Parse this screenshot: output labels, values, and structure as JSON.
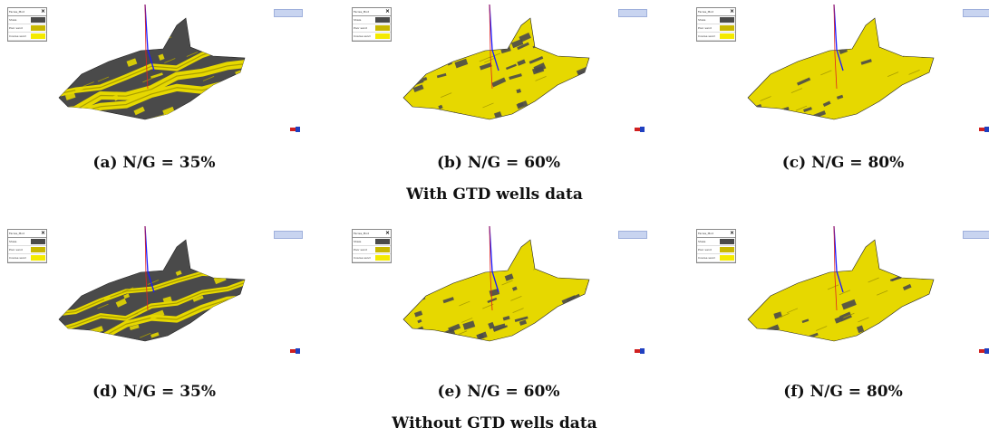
{
  "legend": {
    "title": "Facies_Mod",
    "rows": [
      {
        "label": "Shale",
        "color": "#4a4a4a"
      },
      {
        "label": "Poor sand",
        "color": "#c9b800"
      },
      {
        "label": "Coarse sand",
        "color": "#f4ea00"
      }
    ]
  },
  "panels": [
    {
      "caption": "(a) N/G = 35%"
    },
    {
      "caption": "(b) N/G = 60%"
    },
    {
      "caption": "(c) N/G = 80%"
    },
    {
      "caption": "(d) N/G = 35%"
    },
    {
      "caption": "(e) N/G = 60%"
    },
    {
      "caption": "(f) N/G = 80%"
    }
  ],
  "groups": {
    "with_gtd": "With GTD wells data",
    "without_gtd": "Without GTD wells data"
  },
  "colors": {
    "shale": "#4a4a4a",
    "sand": "#e6d800",
    "sand_dark": "#a99d00",
    "well_blue": "#1a1aff",
    "well_red": "#e02020"
  }
}
